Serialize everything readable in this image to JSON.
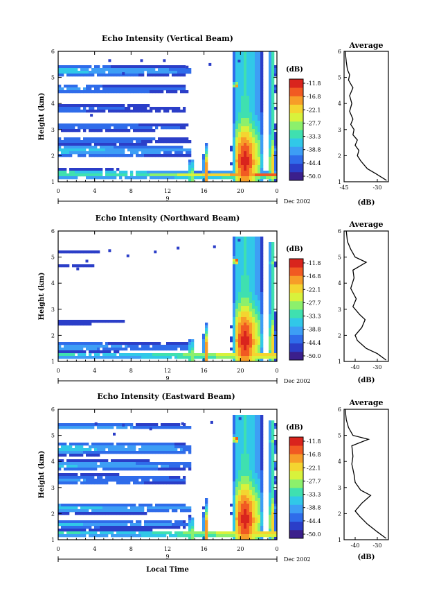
{
  "chart_data": [
    {
      "type": "heatmap",
      "title": "Echo Intensity (Vertical Beam)",
      "ylabel": "Height (km)",
      "xlabel": "",
      "ylim": [
        1,
        6
      ],
      "xlim": [
        0,
        24
      ],
      "x_ticks": [
        "0",
        "4",
        "8",
        "12",
        "16",
        "20",
        "0"
      ],
      "y_ticks": [
        "1",
        "2",
        "3",
        "4",
        "5",
        "6"
      ],
      "date_row": {
        "day": "9",
        "month_year": "Dec 2002"
      },
      "colorbar": {
        "unit": "(dB)",
        "levels": [
          "-11.8",
          "-16.8",
          "-22.1",
          "-27.7",
          "-33.3",
          "-38.8",
          "-44.4",
          "-50.0"
        ]
      },
      "profile": {
        "title": "Average",
        "xlabel": "(dB)",
        "x_ticks": [
          "-45",
          "-30"
        ],
        "xlim": [
          -45,
          -25
        ],
        "y_ticks": [
          "1",
          "2",
          "3",
          "4",
          "5",
          "6"
        ],
        "points": [
          [
            -25.8,
            1.05
          ],
          [
            -30.5,
            1.3
          ],
          [
            -34.5,
            1.5
          ],
          [
            -37.5,
            1.8
          ],
          [
            -39,
            2.0
          ],
          [
            -38.3,
            2.2
          ],
          [
            -40,
            2.4
          ],
          [
            -39,
            2.6
          ],
          [
            -41,
            2.8
          ],
          [
            -40.5,
            3.0
          ],
          [
            -42,
            3.2
          ],
          [
            -41,
            3.4
          ],
          [
            -42.5,
            3.7
          ],
          [
            -41.5,
            4.0
          ],
          [
            -42.5,
            4.3
          ],
          [
            -41,
            4.6
          ],
          [
            -43,
            4.9
          ],
          [
            -42.5,
            5.1
          ],
          [
            -43.5,
            5.3
          ],
          [
            -44,
            5.6
          ],
          [
            -44.5,
            6.0
          ]
        ]
      }
    },
    {
      "type": "heatmap",
      "title": "Echo Intensity (Northward Beam)",
      "ylabel": "Height (km)",
      "xlabel": "",
      "ylim": [
        1,
        6
      ],
      "xlim": [
        0,
        24
      ],
      "x_ticks": [
        "0",
        "4",
        "8",
        "12",
        "16",
        "20",
        "0"
      ],
      "y_ticks": [
        "1",
        "2",
        "3",
        "4",
        "5",
        "6"
      ],
      "date_row": {
        "day": "9",
        "month_year": "Dec 2002"
      },
      "colorbar": {
        "unit": "(dB)",
        "levels": [
          "-11.8",
          "-16.8",
          "-22.1",
          "-27.7",
          "-33.3",
          "-38.8",
          "-44.4",
          "-50.0"
        ]
      },
      "profile": {
        "title": "Average",
        "xlabel": "(dB)",
        "x_ticks": [
          "-40",
          "-30"
        ],
        "xlim": [
          -45,
          -25
        ],
        "y_ticks": [
          "1",
          "2",
          "3",
          "4",
          "5",
          "6"
        ],
        "points": [
          [
            -26,
            1.05
          ],
          [
            -30,
            1.3
          ],
          [
            -35,
            1.5
          ],
          [
            -39,
            1.8
          ],
          [
            -40,
            2.0
          ],
          [
            -37,
            2.3
          ],
          [
            -35.5,
            2.6
          ],
          [
            -38,
            2.8
          ],
          [
            -41,
            3.1
          ],
          [
            -39.5,
            3.4
          ],
          [
            -42,
            3.8
          ],
          [
            -40.5,
            4.2
          ],
          [
            -41,
            4.5
          ],
          [
            -35,
            4.8
          ],
          [
            -40,
            5.0
          ],
          [
            -42,
            5.3
          ],
          [
            -43.5,
            5.6
          ],
          [
            -44,
            6.0
          ]
        ]
      }
    },
    {
      "type": "heatmap",
      "title": "Echo Intensity (Eastward Beam)",
      "ylabel": "Height (km)",
      "xlabel": "Local Time",
      "ylim": [
        1,
        6
      ],
      "xlim": [
        0,
        24
      ],
      "x_ticks": [
        "0",
        "4",
        "8",
        "12",
        "16",
        "20",
        "0"
      ],
      "y_ticks": [
        "1",
        "2",
        "3",
        "4",
        "5",
        "6"
      ],
      "date_row": {
        "day": "9",
        "month_year": "Dec 2002"
      },
      "colorbar": {
        "unit": "(dB)",
        "levels": [
          "-11.8",
          "-16.8",
          "-22.1",
          "-27.7",
          "-33.3",
          "-38.8",
          "-44.4",
          "-50.0"
        ]
      },
      "profile": {
        "title": "Average",
        "xlabel": "(dB)",
        "x_ticks": [
          "-40",
          "-30"
        ],
        "xlim": [
          -45,
          -25
        ],
        "y_ticks": [
          "1",
          "2",
          "3",
          "4",
          "5",
          "6"
        ],
        "points": [
          [
            -26,
            1.05
          ],
          [
            -30,
            1.3
          ],
          [
            -34.5,
            1.6
          ],
          [
            -38,
            1.9
          ],
          [
            -40,
            2.1
          ],
          [
            -37,
            2.4
          ],
          [
            -33,
            2.7
          ],
          [
            -37.5,
            2.9
          ],
          [
            -40,
            3.2
          ],
          [
            -40.5,
            3.5
          ],
          [
            -41.5,
            3.9
          ],
          [
            -41,
            4.2
          ],
          [
            -41.5,
            4.6
          ],
          [
            -34,
            4.85
          ],
          [
            -41,
            5.0
          ],
          [
            -43,
            5.3
          ],
          [
            -44,
            5.6
          ],
          [
            -44.5,
            6.0
          ]
        ]
      }
    }
  ],
  "palette": [
    "#3b1f8c",
    "#2b3ec8",
    "#2f6cea",
    "#3d9ef5",
    "#31c8e8",
    "#3fe0b0",
    "#8cf06c",
    "#d8f23c",
    "#f4d530",
    "#f79d28",
    "#f15a22",
    "#d9241d"
  ],
  "dots": {
    "vertical": [
      [
        5.5,
        0.3
      ],
      [
        9,
        0.3
      ],
      [
        11.5,
        0.3
      ],
      [
        19.7,
        0.32
      ],
      [
        14,
        0.55
      ],
      [
        16.5,
        0.45
      ],
      [
        7,
        0.8
      ],
      [
        3.5,
        2.4
      ]
    ],
    "northward": [
      [
        3,
        1.1
      ],
      [
        5.5,
        0.7
      ],
      [
        7.5,
        0.9
      ],
      [
        10.5,
        0.75
      ],
      [
        13,
        0.6
      ],
      [
        17,
        0.55
      ],
      [
        19.7,
        0.3
      ],
      [
        2,
        1.4
      ]
    ],
    "eastward": [
      [
        4,
        0.5
      ],
      [
        7,
        0.55
      ],
      [
        10,
        0.7
      ],
      [
        13.5,
        0.5
      ],
      [
        16.7,
        0.45
      ],
      [
        19.8,
        0.3
      ],
      [
        6,
        0.9
      ]
    ]
  }
}
